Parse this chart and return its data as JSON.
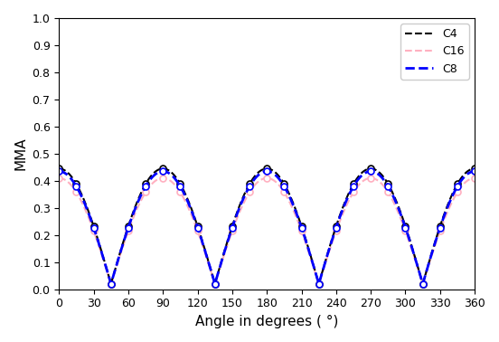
{
  "title": "",
  "xlabel": "Angle in degrees ( °)",
  "ylabel": "MMA",
  "xlim": [
    0,
    360
  ],
  "ylim": [
    0.0,
    1.0
  ],
  "xticks": [
    0,
    30,
    60,
    90,
    120,
    150,
    180,
    210,
    240,
    270,
    300,
    330,
    360
  ],
  "yticks": [
    0.0,
    0.1,
    0.2,
    0.3,
    0.4,
    0.5,
    0.6,
    0.7,
    0.8,
    0.9,
    1.0
  ],
  "series": {
    "C4": {
      "color": "black",
      "linestyle": "--",
      "marker": "o",
      "linewidth": 1.5,
      "markersize": 5,
      "label": "C4",
      "peak_value": 0.445,
      "trough_value": 0.02
    },
    "C16": {
      "color": "#ffb0c0",
      "linestyle": "--",
      "marker": "o",
      "linewidth": 1.5,
      "markersize": 5,
      "label": "C16",
      "peak_value": 0.41,
      "trough_value": 0.02
    },
    "C8": {
      "color": "blue",
      "linestyle": "--",
      "marker": "o",
      "linewidth": 2.0,
      "markersize": 5,
      "label": "C8",
      "peak_value": 0.435,
      "trough_value": 0.02
    }
  },
  "series_order": [
    "C16",
    "C4",
    "C8"
  ],
  "legend_order": [
    "C4",
    "C16",
    "C8"
  ],
  "angles_dense": 721,
  "marker_angles": [
    0,
    15,
    30,
    45,
    60,
    75,
    90,
    105,
    120,
    135,
    150,
    165,
    180,
    195,
    210,
    225,
    240,
    255,
    270,
    285,
    300,
    315,
    330,
    345,
    360
  ]
}
